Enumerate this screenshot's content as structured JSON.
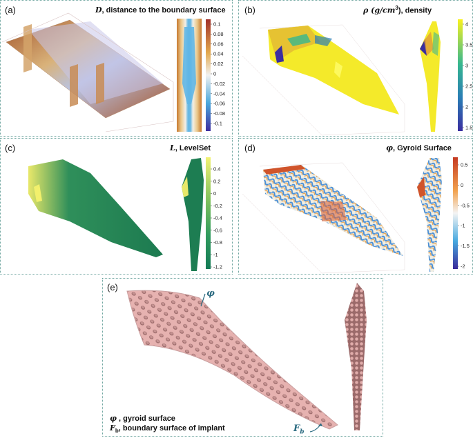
{
  "panels": {
    "a": {
      "label": "(a)",
      "title_sym": "D",
      "title_text": ", distance to the boundary surface",
      "colorbar_ticks": [
        "0.1",
        "0.08",
        "0.06",
        "0.04",
        "0.02",
        "0",
        "-0.02",
        "-0.04",
        "-0.06",
        "-0.08",
        "-0.1"
      ],
      "colors": [
        "#a0302a",
        "#e3a94e",
        "#f1f1f1",
        "#4aa8dd",
        "#3e2da0"
      ]
    },
    "b": {
      "label": "(b)",
      "title_sym": "ρ (g/cm",
      "title_sup": "3",
      "title_text": "), density",
      "colorbar_ticks": [
        "4",
        "3.5",
        "3",
        "2.5",
        "2",
        "1.5"
      ],
      "colors": [
        "#f9f21f",
        "#36b78f",
        "#2a7eb5",
        "#3a2ea0"
      ]
    },
    "c": {
      "label": "(c)",
      "title_sym": "L",
      "title_text": ", LevelSet",
      "colorbar_ticks": [
        "0.4",
        "0.2",
        "0",
        "-0.2",
        "-0.4",
        "-0.6",
        "-0.8",
        "-1",
        "-1.2"
      ],
      "colors": [
        "#f3f274",
        "#7cbf5d",
        "#2f9a5d",
        "#137a55"
      ]
    },
    "d": {
      "label": "(d)",
      "title_sym": "φ",
      "title_text": ", Gyroid Surface",
      "colorbar_ticks": [
        "0.5",
        "0",
        "-0.5",
        "-1",
        "-1.5",
        "-2"
      ],
      "colors": [
        "#c53a22",
        "#f2a24e",
        "#f4f4f4",
        "#48a9df",
        "#3a2a9a"
      ]
    },
    "e": {
      "label": "(e)",
      "annotation_phi": "φ",
      "annotation_fb": "F",
      "annotation_fb_sub": "b",
      "legend_line1_sym": "φ",
      "legend_line1_text": " , gyroid surface",
      "legend_line2_sym": "F",
      "legend_line2_sub": "b",
      "legend_line2_text": ", boundary surface of implant",
      "colors": [
        "#e6b2b0",
        "#9b6a6a"
      ]
    }
  }
}
